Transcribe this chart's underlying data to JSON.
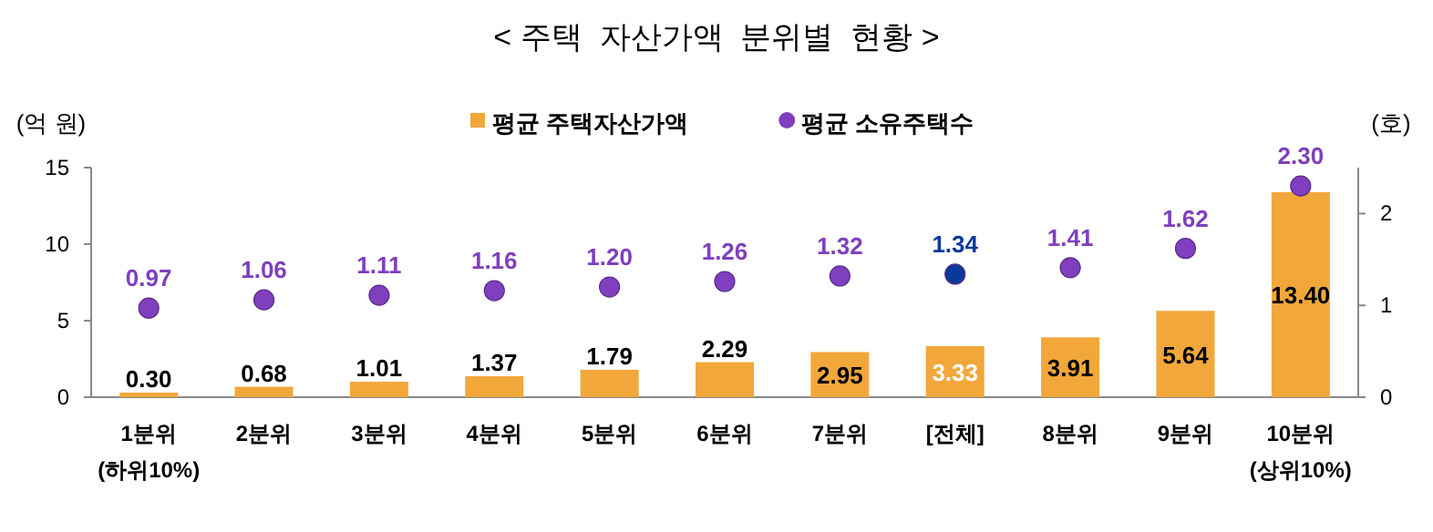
{
  "chart_data": {
    "type": "bar",
    "title": "< 주택  자산가액  분위별  현황 >",
    "ylabel": "(억 원)",
    "y2label": "(호)",
    "categories": [
      "1분위\n(하위10%)",
      "2분위",
      "3분위",
      "4분위",
      "5분위",
      "6분위",
      "7분위",
      "[전체]",
      "8분위",
      "9분위",
      "10분위\n(상위10%)"
    ],
    "series": [
      {
        "name": "평균 주택자산가액",
        "color": "#f2a73b",
        "values": [
          0.3,
          0.68,
          1.01,
          1.37,
          1.79,
          2.29,
          2.95,
          3.33,
          3.91,
          5.64,
          13.4
        ],
        "value_labels": [
          "0.30",
          "0.68",
          "1.01",
          "1.37",
          "1.79",
          "2.29",
          "2.95",
          "3.33",
          "3.91",
          "5.64",
          "13.40"
        ]
      },
      {
        "name": "평균 소유주택수",
        "type": "scatter",
        "axis": "y2",
        "color": "#7f3fbf",
        "colors": [
          "#7f3fbf",
          "#7f3fbf",
          "#7f3fbf",
          "#7f3fbf",
          "#7f3fbf",
          "#7f3fbf",
          "#7f3fbf",
          "#0a3a99",
          "#7f3fbf",
          "#7f3fbf",
          "#7f3fbf"
        ],
        "values": [
          0.97,
          1.06,
          1.11,
          1.16,
          1.2,
          1.26,
          1.32,
          1.34,
          1.41,
          1.62,
          2.3
        ],
        "value_labels": [
          "0.97",
          "1.06",
          "1.11",
          "1.16",
          "1.20",
          "1.26",
          "1.32",
          "1.34",
          "1.41",
          "1.62",
          "2.30"
        ]
      }
    ],
    "ylim": [
      0,
      15
    ],
    "yticks": [
      0,
      5,
      10,
      15
    ],
    "y2lim": [
      0,
      2.5
    ],
    "y2ticks": [
      0,
      1,
      2
    ],
    "legend": "top",
    "grid": false,
    "marker": "circle"
  }
}
